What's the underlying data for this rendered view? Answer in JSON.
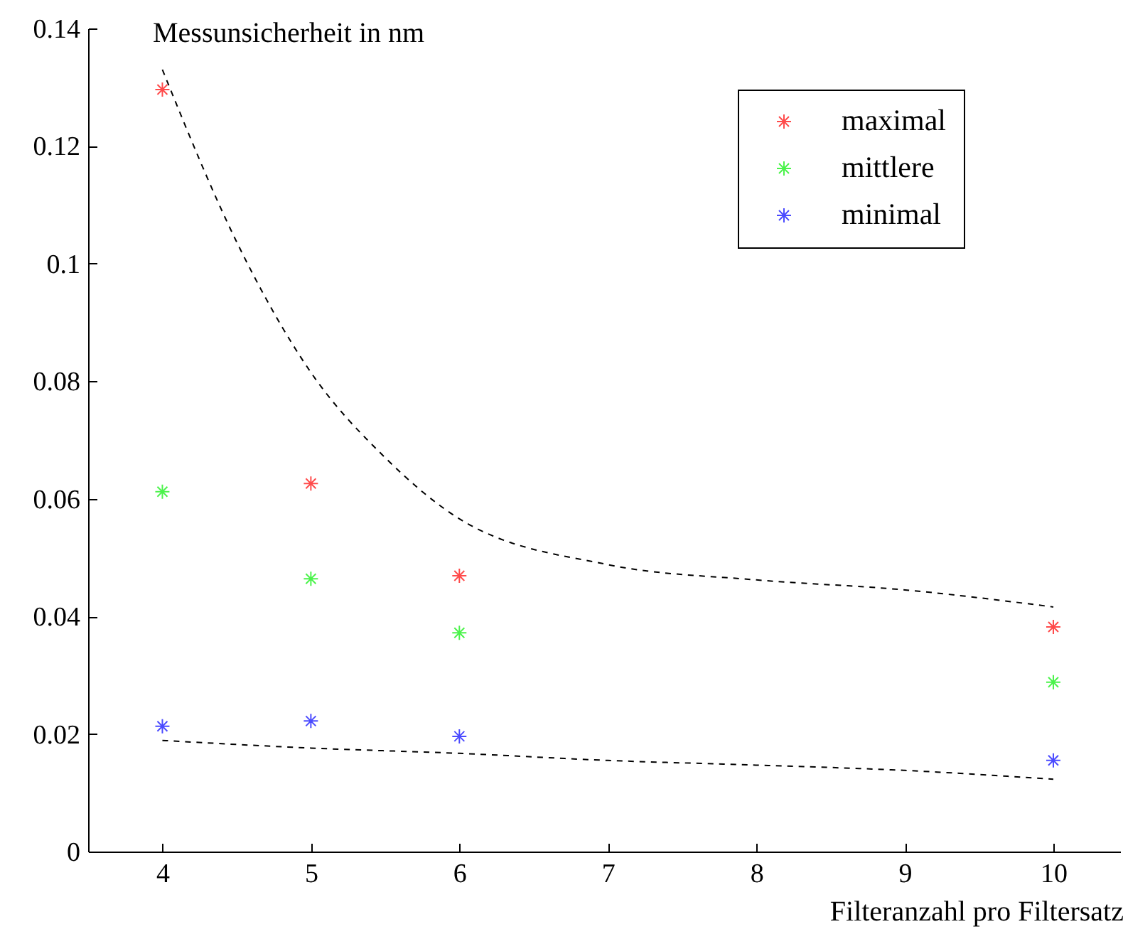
{
  "chart_data": {
    "type": "scatter",
    "xlabel": "Filteranzahl pro Filtersatz",
    "ylabel": "Messunsicherheit in nm",
    "x": [
      4,
      5,
      6,
      10
    ],
    "series": [
      {
        "name": "maximal",
        "color": "#ff0000",
        "values": [
          0.1296,
          0.0626,
          0.0469,
          0.0382
        ]
      },
      {
        "name": "mittlere",
        "color": "#00ee00",
        "values": [
          0.0612,
          0.0464,
          0.0372,
          0.0288
        ]
      },
      {
        "name": "minimal",
        "color": "#0000ff",
        "values": [
          0.0213,
          0.0222,
          0.0196,
          0.0155
        ]
      },
      {
        "type": "line",
        "color": "#000000",
        "line_style": "dashed",
        "marker": "none",
        "x": [
          4,
          4.5,
          5,
          5.5,
          6,
          7,
          8,
          9,
          10
        ],
        "values": [
          0.133,
          0.1037,
          0.0815,
          0.067,
          0.0566,
          0.0488,
          0.0462,
          0.0445,
          0.0416
        ]
      },
      {
        "type": "line",
        "color": "#000000",
        "line_style": "dashed",
        "marker": "none",
        "x": [
          4,
          5,
          6,
          7,
          8,
          9,
          10
        ],
        "values": [
          0.0189,
          0.0176,
          0.0167,
          0.0155,
          0.0147,
          0.0138,
          0.0123
        ]
      }
    ],
    "xlim": [
      3.5,
      10.45
    ],
    "ylim": [
      0,
      0.14
    ],
    "xticks": [
      4,
      5,
      6,
      7,
      8,
      9,
      10
    ],
    "yticks": [
      0,
      0.02,
      0.04,
      0.06,
      0.08,
      0.1,
      0.12,
      0.14
    ],
    "grid": false,
    "legend": "top right",
    "marker": "cross"
  }
}
